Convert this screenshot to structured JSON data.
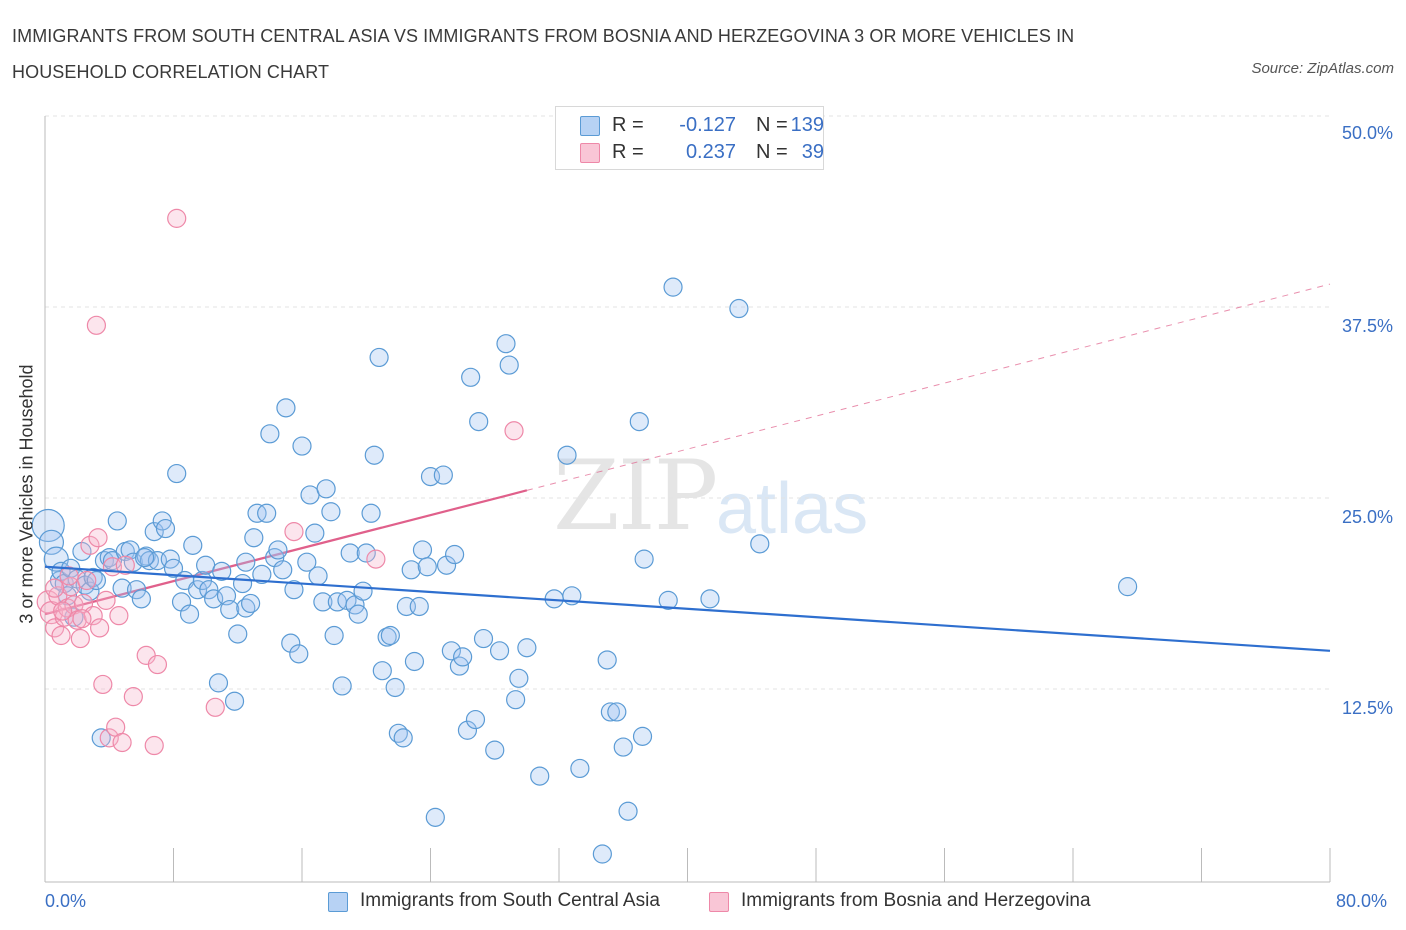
{
  "title": "IMMIGRANTS FROM SOUTH CENTRAL ASIA VS IMMIGRANTS FROM BOSNIA AND HERZEGOVINA 3 OR MORE VEHICLES IN HOUSEHOLD CORRELATION CHART",
  "source": "Source: ZipAtlas.com",
  "watermark": {
    "zip": "ZIP",
    "atlas": "atlas"
  },
  "colors": {
    "blue": "#5b9bd5",
    "blue_line": "#2e6fcf",
    "pink": "#ee88a8",
    "pink_line": "#e0608b",
    "tick_text": "#3a6fc4"
  },
  "legend": {
    "rows": [
      {
        "r_label": "R =",
        "r_value": "-0.127",
        "n_label": "N =",
        "n_value": "139",
        "color": "#a9c8f0"
      },
      {
        "r_label": "R =",
        "r_value": "0.237",
        "n_label": "N =",
        "n_value": "39",
        "color": "#f7b8cc"
      }
    ]
  },
  "bottom_legend": [
    {
      "label": "Immigrants from South Central Asia",
      "color": "#a9c8f0"
    },
    {
      "label": "Immigrants from Bosnia and Herzegovina",
      "color": "#f7b8cc"
    }
  ],
  "chart_data": {
    "type": "scatter",
    "title": "IMMIGRANTS FROM SOUTH CENTRAL ASIA VS IMMIGRANTS FROM BOSNIA AND HERZEGOVINA 3 OR MORE VEHICLES IN HOUSEHOLD CORRELATION CHART",
    "xlabel": "",
    "ylabel": "3 or more Vehicles in Household",
    "xlim": [
      0,
      80
    ],
    "ylim": [
      0,
      50
    ],
    "y_ticks": [
      "50.0%",
      "37.5%",
      "25.0%",
      "12.5%"
    ],
    "y_tick_values": [
      50,
      37.5,
      25,
      12.5
    ],
    "x_tick_labels": [
      "0.0%",
      "80.0%"
    ],
    "x_tick_values": [
      0,
      80
    ],
    "grid": true,
    "legend_position": "top-center",
    "series": [
      {
        "name": "Immigrants from South Central Asia",
        "R": -0.127,
        "N": 139,
        "trend": {
          "x": [
            0,
            80
          ],
          "y": [
            20.5,
            15.0
          ]
        },
        "points": [
          [
            0.2,
            23.2
          ],
          [
            0.4,
            22.1
          ],
          [
            0.7,
            21.0
          ],
          [
            0.9,
            19.6
          ],
          [
            1.0,
            20.2
          ],
          [
            1.2,
            19.4
          ],
          [
            1.4,
            18.6
          ],
          [
            1.6,
            20.4
          ],
          [
            1.8,
            17.2
          ],
          [
            2.0,
            19.7
          ],
          [
            2.3,
            21.5
          ],
          [
            2.5,
            19.3
          ],
          [
            2.8,
            18.9
          ],
          [
            3.0,
            19.8
          ],
          [
            3.2,
            19.6
          ],
          [
            3.5,
            9.3
          ],
          [
            3.7,
            20.9
          ],
          [
            4.0,
            21.1
          ],
          [
            4.2,
            20.9
          ],
          [
            4.5,
            23.5
          ],
          [
            4.8,
            19.1
          ],
          [
            5.0,
            21.5
          ],
          [
            5.3,
            21.6
          ],
          [
            5.5,
            20.8
          ],
          [
            5.7,
            19.0
          ],
          [
            6.0,
            18.4
          ],
          [
            6.3,
            21.2
          ],
          [
            6.5,
            20.9
          ],
          [
            6.8,
            22.8
          ],
          [
            7.0,
            20.9
          ],
          [
            7.3,
            23.5
          ],
          [
            7.5,
            23.0
          ],
          [
            7.8,
            21.0
          ],
          [
            8.0,
            20.4
          ],
          [
            8.2,
            26.6
          ],
          [
            8.5,
            18.2
          ],
          [
            8.7,
            19.6
          ],
          [
            9.0,
            17.4
          ],
          [
            9.2,
            21.9
          ],
          [
            9.5,
            19.0
          ],
          [
            9.8,
            19.6
          ],
          [
            10.0,
            20.6
          ],
          [
            10.2,
            19.0
          ],
          [
            10.5,
            18.4
          ],
          [
            10.8,
            12.9
          ],
          [
            11.0,
            20.2
          ],
          [
            11.3,
            18.6
          ],
          [
            11.5,
            17.7
          ],
          [
            11.8,
            11.7
          ],
          [
            12.0,
            16.1
          ],
          [
            12.3,
            19.4
          ],
          [
            12.5,
            17.8
          ],
          [
            12.8,
            18.1
          ],
          [
            13.0,
            22.4
          ],
          [
            13.2,
            24.0
          ],
          [
            13.5,
            20.0
          ],
          [
            13.8,
            24.0
          ],
          [
            14.0,
            29.2
          ],
          [
            14.3,
            21.1
          ],
          [
            14.5,
            21.6
          ],
          [
            14.8,
            20.3
          ],
          [
            15.0,
            30.9
          ],
          [
            15.3,
            15.5
          ],
          [
            15.5,
            19.0
          ],
          [
            15.8,
            14.8
          ],
          [
            16.0,
            28.4
          ],
          [
            16.3,
            20.8
          ],
          [
            16.5,
            25.2
          ],
          [
            16.8,
            22.7
          ],
          [
            17.0,
            19.9
          ],
          [
            17.3,
            18.2
          ],
          [
            17.5,
            25.6
          ],
          [
            17.8,
            24.1
          ],
          [
            18.0,
            16.0
          ],
          [
            18.2,
            18.2
          ],
          [
            18.5,
            12.7
          ],
          [
            18.8,
            18.3
          ],
          [
            19.0,
            21.4
          ],
          [
            19.3,
            18.0
          ],
          [
            19.5,
            17.4
          ],
          [
            19.8,
            18.9
          ],
          [
            20.0,
            21.4
          ],
          [
            20.3,
            24.0
          ],
          [
            20.5,
            27.8
          ],
          [
            20.8,
            34.2
          ],
          [
            21.0,
            13.7
          ],
          [
            21.3,
            15.9
          ],
          [
            21.5,
            16.0
          ],
          [
            21.8,
            12.6
          ],
          [
            22.0,
            9.6
          ],
          [
            22.3,
            9.3
          ],
          [
            22.5,
            17.9
          ],
          [
            22.8,
            20.3
          ],
          [
            23.0,
            14.3
          ],
          [
            23.3,
            17.9
          ],
          [
            23.5,
            21.6
          ],
          [
            23.8,
            20.5
          ],
          [
            24.0,
            26.4
          ],
          [
            24.3,
            4.1
          ],
          [
            24.8,
            26.5
          ],
          [
            25.0,
            20.6
          ],
          [
            25.3,
            15.0
          ],
          [
            25.5,
            21.3
          ],
          [
            25.8,
            14.0
          ],
          [
            26.0,
            14.6
          ],
          [
            26.3,
            9.8
          ],
          [
            26.5,
            32.9
          ],
          [
            26.8,
            10.5
          ],
          [
            27.0,
            30.0
          ],
          [
            27.3,
            15.8
          ],
          [
            28.0,
            8.5
          ],
          [
            28.3,
            15.0
          ],
          [
            28.7,
            35.1
          ],
          [
            28.9,
            33.7
          ],
          [
            29.3,
            11.8
          ],
          [
            29.5,
            13.2
          ],
          [
            30.0,
            15.2
          ],
          [
            30.8,
            6.8
          ],
          [
            31.7,
            18.4
          ],
          [
            32.5,
            27.8
          ],
          [
            32.8,
            18.6
          ],
          [
            33.3,
            7.3
          ],
          [
            34.7,
            1.7
          ],
          [
            35.0,
            14.4
          ],
          [
            35.2,
            11.0
          ],
          [
            35.6,
            11.0
          ],
          [
            36.0,
            8.7
          ],
          [
            36.3,
            4.5
          ],
          [
            37.0,
            30.0
          ],
          [
            37.2,
            9.4
          ],
          [
            37.3,
            21.0
          ],
          [
            38.8,
            18.3
          ],
          [
            39.1,
            38.8
          ],
          [
            41.4,
            18.4
          ],
          [
            43.2,
            37.4
          ],
          [
            67.4,
            19.2
          ],
          [
            44.5,
            22.0
          ],
          [
            12.5,
            20.8
          ],
          [
            6.2,
            21.1
          ]
        ]
      },
      {
        "name": "Immigrants from Bosnia and Herzegovina",
        "R": 0.237,
        "N": 39,
        "trend": {
          "x": [
            0,
            30
          ],
          "y": [
            17.4,
            25.5
          ],
          "dashed_extension_to": [
            80,
            39.0
          ]
        },
        "points": [
          [
            0.2,
            18.2
          ],
          [
            0.4,
            17.5
          ],
          [
            0.6,
            16.5
          ],
          [
            0.8,
            18.6
          ],
          [
            1.0,
            16.0
          ],
          [
            1.2,
            17.2
          ],
          [
            1.4,
            17.8
          ],
          [
            1.6,
            19.2
          ],
          [
            1.8,
            18.0
          ],
          [
            2.0,
            17.0
          ],
          [
            2.2,
            15.8
          ],
          [
            2.4,
            18.1
          ],
          [
            2.6,
            19.6
          ],
          [
            2.8,
            21.9
          ],
          [
            3.0,
            17.3
          ],
          [
            3.2,
            36.3
          ],
          [
            3.4,
            16.5
          ],
          [
            3.6,
            12.8
          ],
          [
            3.8,
            18.3
          ],
          [
            4.0,
            9.3
          ],
          [
            4.2,
            20.5
          ],
          [
            4.4,
            10.0
          ],
          [
            4.6,
            17.3
          ],
          [
            4.8,
            9.0
          ],
          [
            5.0,
            20.6
          ],
          [
            5.5,
            12.0
          ],
          [
            6.3,
            14.7
          ],
          [
            6.8,
            8.8
          ],
          [
            7.0,
            14.1
          ],
          [
            8.2,
            43.3
          ],
          [
            10.6,
            11.3
          ],
          [
            15.5,
            22.8
          ],
          [
            20.6,
            21.0
          ],
          [
            29.2,
            29.4
          ],
          [
            3.3,
            22.4
          ],
          [
            2.3,
            17.1
          ],
          [
            1.1,
            17.6
          ],
          [
            0.6,
            19.1
          ],
          [
            1.5,
            19.9
          ]
        ]
      }
    ]
  }
}
